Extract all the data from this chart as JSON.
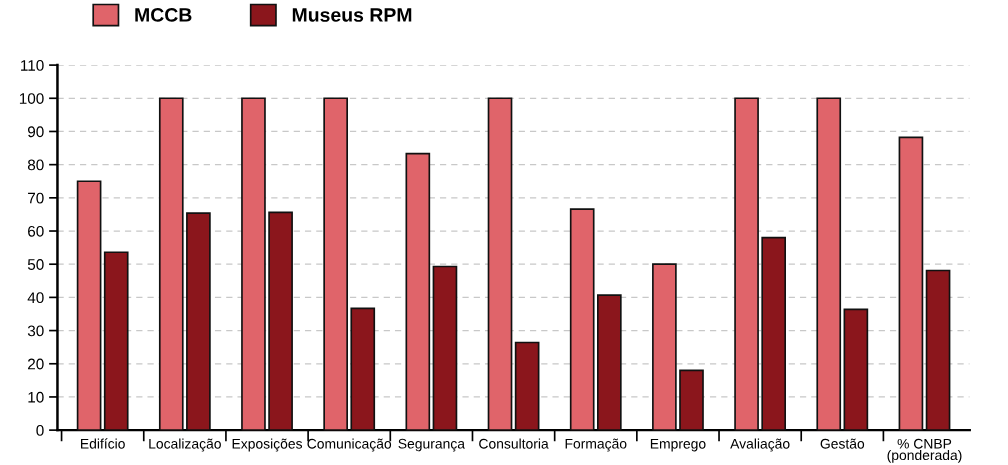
{
  "chart_data": {
    "type": "bar",
    "categories": [
      "Edifício",
      "Localização",
      "Exposições",
      "Comunicação",
      "Segurança",
      "Consultoria",
      "Formação",
      "Emprego",
      "Avaliação",
      "Gestão",
      "% CNBP\n(ponderada)"
    ],
    "series": [
      {
        "name": "MCCB",
        "color": "#e0646a",
        "values": [
          75,
          100,
          100,
          100,
          83.3,
          100,
          66.6,
          50,
          100,
          100,
          88.2
        ]
      },
      {
        "name": "Museus RPM",
        "color": "#8b161c",
        "values": [
          53.6,
          65.4,
          65.6,
          36.7,
          49.3,
          26.4,
          40.7,
          18.0,
          58.0,
          36.4,
          48.1
        ]
      }
    ],
    "ylim": [
      0,
      110
    ],
    "yticks": [
      0,
      10,
      20,
      30,
      40,
      50,
      60,
      70,
      80,
      90,
      100,
      110
    ],
    "grid": "y",
    "legend": "top left"
  }
}
